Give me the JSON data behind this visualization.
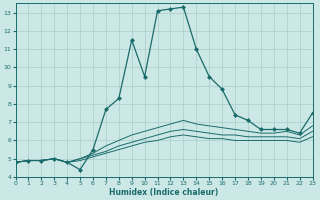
{
  "xlabel": "Humidex (Indice chaleur)",
  "ylabel": "",
  "bg_color": "#cce8e6",
  "grid_color": "#aaccca",
  "line_color": "#1a6b6b",
  "x_values": [
    0,
    1,
    2,
    3,
    4,
    5,
    6,
    7,
    8,
    9,
    10,
    11,
    12,
    13,
    14,
    15,
    16,
    17,
    18,
    19,
    20,
    21,
    22,
    23
  ],
  "series": [
    [
      4.8,
      4.9,
      4.9,
      5.0,
      4.8,
      4.4,
      5.5,
      7.7,
      8.3,
      11.5,
      9.5,
      13.1,
      13.2,
      13.3,
      11.0,
      9.5,
      8.8,
      7.4,
      7.1,
      6.6,
      6.6,
      6.6,
      6.4,
      7.5
    ],
    [
      4.8,
      4.9,
      4.9,
      5.0,
      4.8,
      5.0,
      5.3,
      5.7,
      6.0,
      6.3,
      6.5,
      6.7,
      6.9,
      7.1,
      6.9,
      6.8,
      6.7,
      6.6,
      6.5,
      6.4,
      6.4,
      6.5,
      6.3,
      6.8
    ],
    [
      4.8,
      4.9,
      4.9,
      5.0,
      4.8,
      5.0,
      5.2,
      5.4,
      5.7,
      5.9,
      6.1,
      6.3,
      6.5,
      6.6,
      6.5,
      6.4,
      6.3,
      6.3,
      6.2,
      6.2,
      6.2,
      6.2,
      6.1,
      6.5
    ],
    [
      4.8,
      4.9,
      4.9,
      5.0,
      4.8,
      4.9,
      5.1,
      5.3,
      5.5,
      5.7,
      5.9,
      6.0,
      6.2,
      6.3,
      6.2,
      6.1,
      6.1,
      6.0,
      6.0,
      6.0,
      6.0,
      6.0,
      5.9,
      6.2
    ]
  ],
  "ylim": [
    4,
    13.5
  ],
  "yticks": [
    4,
    5,
    6,
    7,
    8,
    9,
    10,
    11,
    12,
    13
  ],
  "xlim": [
    0,
    23
  ],
  "xticks": [
    0,
    1,
    2,
    3,
    4,
    5,
    6,
    7,
    8,
    9,
    10,
    11,
    12,
    13,
    14,
    15,
    16,
    17,
    18,
    19,
    20,
    21,
    22,
    23
  ],
  "marker": "D",
  "markersize": 2.0
}
